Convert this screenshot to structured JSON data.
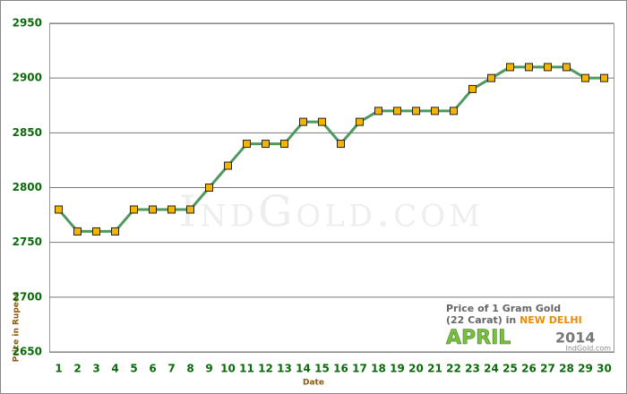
{
  "chart_data": {
    "type": "line",
    "y_label": "Price in Rupees",
    "x_label": "Date",
    "watermark": "IndGold.com",
    "annotation": {
      "line1": "Price of 1 Gram Gold",
      "line2": "(22 Carat) in",
      "city": "NEW DELHI",
      "month": "APRIL",
      "year": "2014",
      "source": "IndGold.com"
    },
    "categories": [
      "1",
      "2",
      "3",
      "4",
      "5",
      "6",
      "7",
      "8",
      "9",
      "10",
      "11",
      "12",
      "13",
      "14",
      "15",
      "16",
      "17",
      "18",
      "19",
      "20",
      "21",
      "22",
      "23",
      "24",
      "25",
      "26",
      "27",
      "28",
      "29",
      "30"
    ],
    "series": [
      {
        "name": "Price",
        "color": "#4e9a5e",
        "marker_color": "#f5b400",
        "values": [
          2780,
          2760,
          2760,
          2760,
          2780,
          2780,
          2780,
          2780,
          2800,
          2820,
          2840,
          2840,
          2840,
          2860,
          2860,
          2840,
          2860,
          2870,
          2870,
          2870,
          2870,
          2870,
          2890,
          2900,
          2910,
          2910,
          2910,
          2910,
          2900,
          2900
        ]
      }
    ],
    "ylim": [
      2650,
      2950
    ],
    "yticks": [
      2650,
      2700,
      2750,
      2800,
      2850,
      2900,
      2950
    ],
    "grid": true
  }
}
